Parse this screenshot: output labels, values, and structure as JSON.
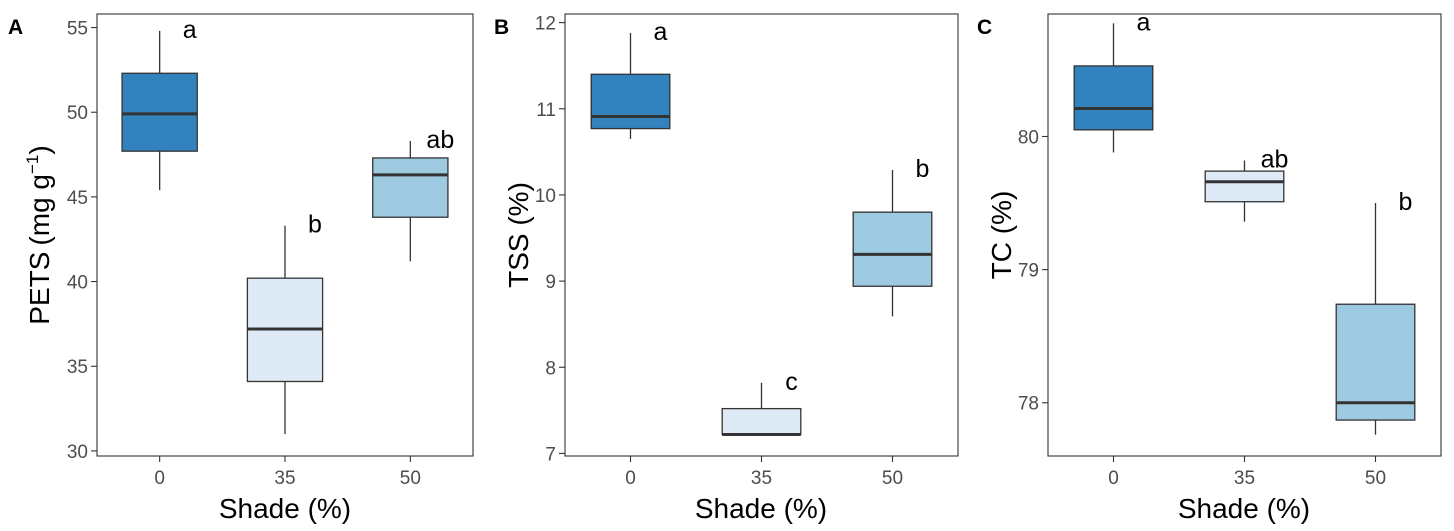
{
  "colors": {
    "shade_0": "#3182bd",
    "shade_35": "#deebf7",
    "shade_50": "#9ecae1",
    "box_stroke": "#333333",
    "tick_text": "#4d4d4d"
  },
  "chart_data": [
    {
      "type": "box",
      "panel_label": "A",
      "xlabel": "Shade (%)",
      "ylabel": "PETS (mg g⁻¹)",
      "ylabel_main": "PETS",
      "ylabel_unit_open": "(",
      "ylabel_unit_text": "mg g",
      "ylabel_unit_sup": "−1",
      "ylabel_unit_close": ")",
      "categories": [
        "0",
        "35",
        "50"
      ],
      "ylim": [
        29.7,
        55.8
      ],
      "yticks": [
        30,
        35,
        40,
        45,
        50,
        55
      ],
      "boxes": [
        {
          "category": "0",
          "min": 45.4,
          "q1": 47.7,
          "median": 49.9,
          "q3": 52.3,
          "max": 54.8,
          "letter": "a"
        },
        {
          "category": "35",
          "min": 31.0,
          "q1": 34.1,
          "median": 37.2,
          "q3": 40.2,
          "max": 43.3,
          "letter": "b"
        },
        {
          "category": "50",
          "min": 41.2,
          "q1": 43.8,
          "median": 46.3,
          "q3": 47.3,
          "max": 48.3,
          "letter": "ab"
        }
      ]
    },
    {
      "type": "box",
      "panel_label": "B",
      "xlabel": "Shade (%)",
      "ylabel": "TSS (%)",
      "ylabel_main": "TSS (%)",
      "categories": [
        "0",
        "35",
        "50"
      ],
      "ylim": [
        6.97,
        12.1
      ],
      "yticks": [
        7,
        8,
        9,
        10,
        11,
        12
      ],
      "boxes": [
        {
          "category": "0",
          "min": 10.65,
          "q1": 10.77,
          "median": 10.91,
          "q3": 11.4,
          "max": 11.88,
          "letter": "a"
        },
        {
          "category": "35",
          "min": 7.22,
          "q1": 7.22,
          "median": 7.22,
          "q3": 7.52,
          "max": 7.82,
          "letter": "c"
        },
        {
          "category": "50",
          "min": 8.59,
          "q1": 8.94,
          "median": 9.31,
          "q3": 9.8,
          "max": 10.29,
          "letter": "b"
        }
      ]
    },
    {
      "type": "box",
      "panel_label": "C",
      "xlabel": "Shade (%)",
      "ylabel": "TC (%)",
      "ylabel_main": "TC (%)",
      "categories": [
        "0",
        "35",
        "50"
      ],
      "ylim": [
        77.6,
        80.92
      ],
      "yticks": [
        78,
        79,
        80
      ],
      "boxes": [
        {
          "category": "0",
          "min": 79.88,
          "q1": 80.05,
          "median": 80.21,
          "q3": 80.53,
          "max": 80.85,
          "letter": "a"
        },
        {
          "category": "35",
          "min": 79.36,
          "q1": 79.51,
          "median": 79.66,
          "q3": 79.74,
          "max": 79.82,
          "letter": "ab"
        },
        {
          "category": "50",
          "min": 77.76,
          "q1": 77.87,
          "median": 78.0,
          "q3": 78.74,
          "max": 79.5,
          "letter": "b"
        }
      ]
    }
  ]
}
